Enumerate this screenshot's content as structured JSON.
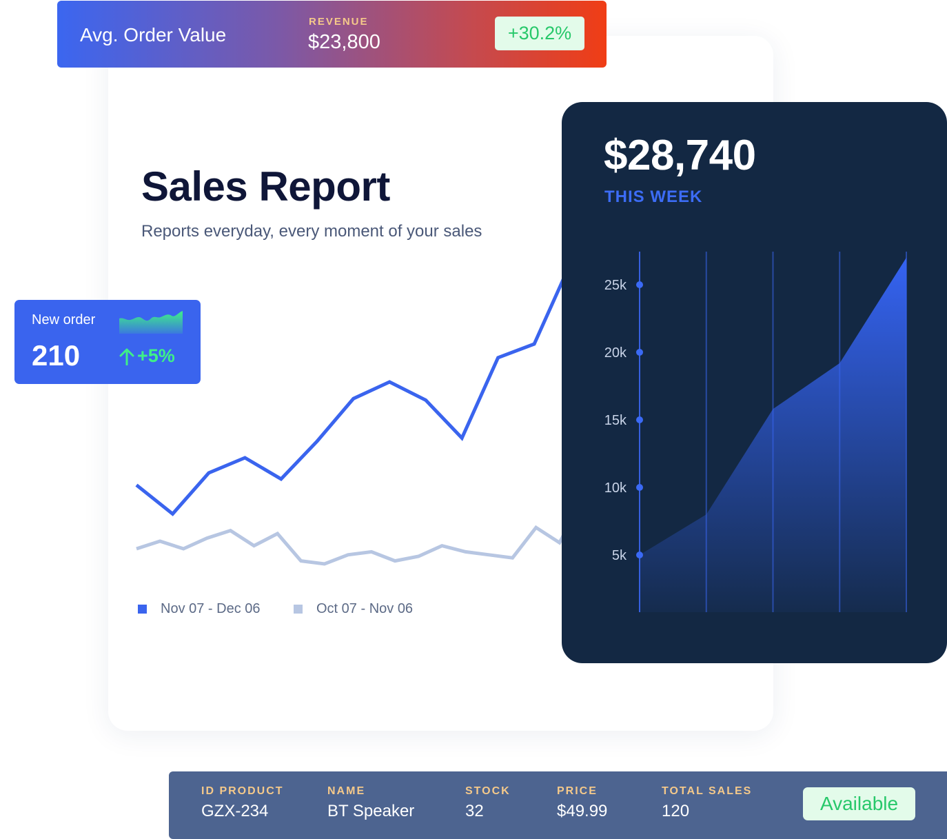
{
  "banner": {
    "title": "Avg. Order Value",
    "revenue_label": "REVENUE",
    "revenue_value": "$23,800",
    "change": "+30.2%"
  },
  "report": {
    "title": "Sales Report",
    "subtitle": "Reports everyday, every moment of your sales"
  },
  "new_order": {
    "label": "New order",
    "value": "210",
    "change": "+5%"
  },
  "week": {
    "value": "$28,740",
    "label": "THIS WEEK"
  },
  "legend": {
    "current": "Nov 07 - Dec 06",
    "previous": "Oct 07 - Nov 06"
  },
  "product": {
    "columns": [
      {
        "header": "ID PRODUCT",
        "value": "GZX-234"
      },
      {
        "header": "NAME",
        "value": "BT Speaker"
      },
      {
        "header": "STOCK",
        "value": "32"
      },
      {
        "header": "PRICE",
        "value": "$49.99"
      },
      {
        "header": "TOTAL SALES",
        "value": "120"
      }
    ],
    "status": "Available"
  },
  "colors": {
    "primary_blue": "#3a64ee",
    "light_series": "#b7c6e2",
    "dark_card": "#132843",
    "accent_green": "#27c86a",
    "accent_gold": "#f5c98a"
  },
  "chart_data": [
    {
      "type": "line",
      "series": [
        {
          "name": "Nov 07 - Dec 06",
          "values": [
            62,
            43,
            70,
            80,
            66,
            91,
            119,
            130,
            118,
            93,
            146,
            155,
            208,
            214
          ]
        },
        {
          "name": "Oct 07 - Nov 06",
          "values": [
            20,
            25,
            20,
            27,
            32,
            22,
            30,
            12,
            10,
            16,
            18,
            12,
            15,
            22,
            18,
            16,
            14,
            34,
            24,
            53,
            68
          ]
        }
      ]
    },
    {
      "type": "area",
      "yticks": [
        "25k",
        "20k",
        "15k",
        "10k",
        "5k"
      ],
      "ylim": [
        0,
        28000
      ],
      "values": [
        5000,
        8000,
        15800,
        19200,
        27000
      ]
    }
  ]
}
